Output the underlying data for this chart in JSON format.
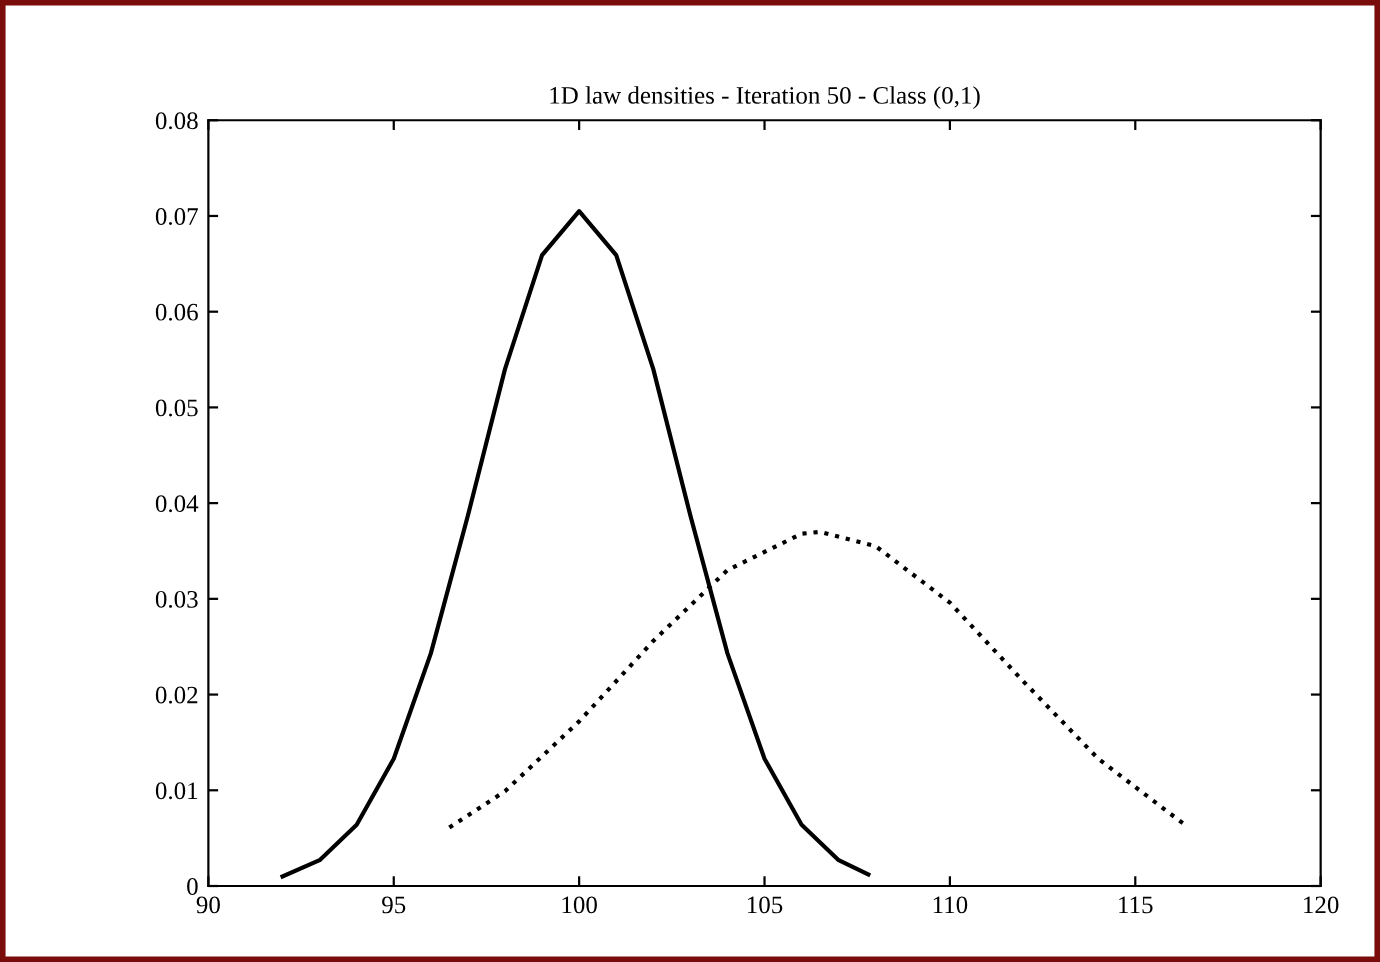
{
  "chart_data": {
    "type": "line",
    "title": "1D law densities - Iteration 50 - Class (0,1)",
    "xlim": [
      90,
      120
    ],
    "xticks": [
      90,
      95,
      100,
      105,
      110,
      115,
      120
    ],
    "ylim": [
      0,
      0.08
    ],
    "yticks": [
      0,
      0.01,
      0.02,
      0.03,
      0.04,
      0.05,
      0.06,
      0.07,
      0.08
    ],
    "grid": false,
    "legend": false,
    "marker": "none",
    "series": [
      {
        "color": "#000000",
        "line_style": "solid",
        "x": [
          92,
          93,
          94,
          95,
          96,
          97,
          98,
          99,
          100,
          101,
          102,
          103,
          104,
          105,
          106,
          107,
          107.8
        ],
        "values": [
          0.001,
          0.0027,
          0.0064,
          0.0133,
          0.0243,
          0.0387,
          0.054,
          0.0659,
          0.0705,
          0.0659,
          0.054,
          0.0387,
          0.0243,
          0.0133,
          0.0064,
          0.0027,
          0.0012
        ]
      },
      {
        "color": "#000000",
        "line_style": "dotted",
        "x": [
          96.5,
          98,
          100,
          102,
          104,
          106,
          106.5,
          108,
          110,
          112,
          114,
          116.3
        ],
        "values": [
          0.0061,
          0.0099,
          0.0172,
          0.0256,
          0.033,
          0.0368,
          0.037,
          0.0355,
          0.0296,
          0.0213,
          0.0133,
          0.0065
        ]
      }
    ]
  }
}
